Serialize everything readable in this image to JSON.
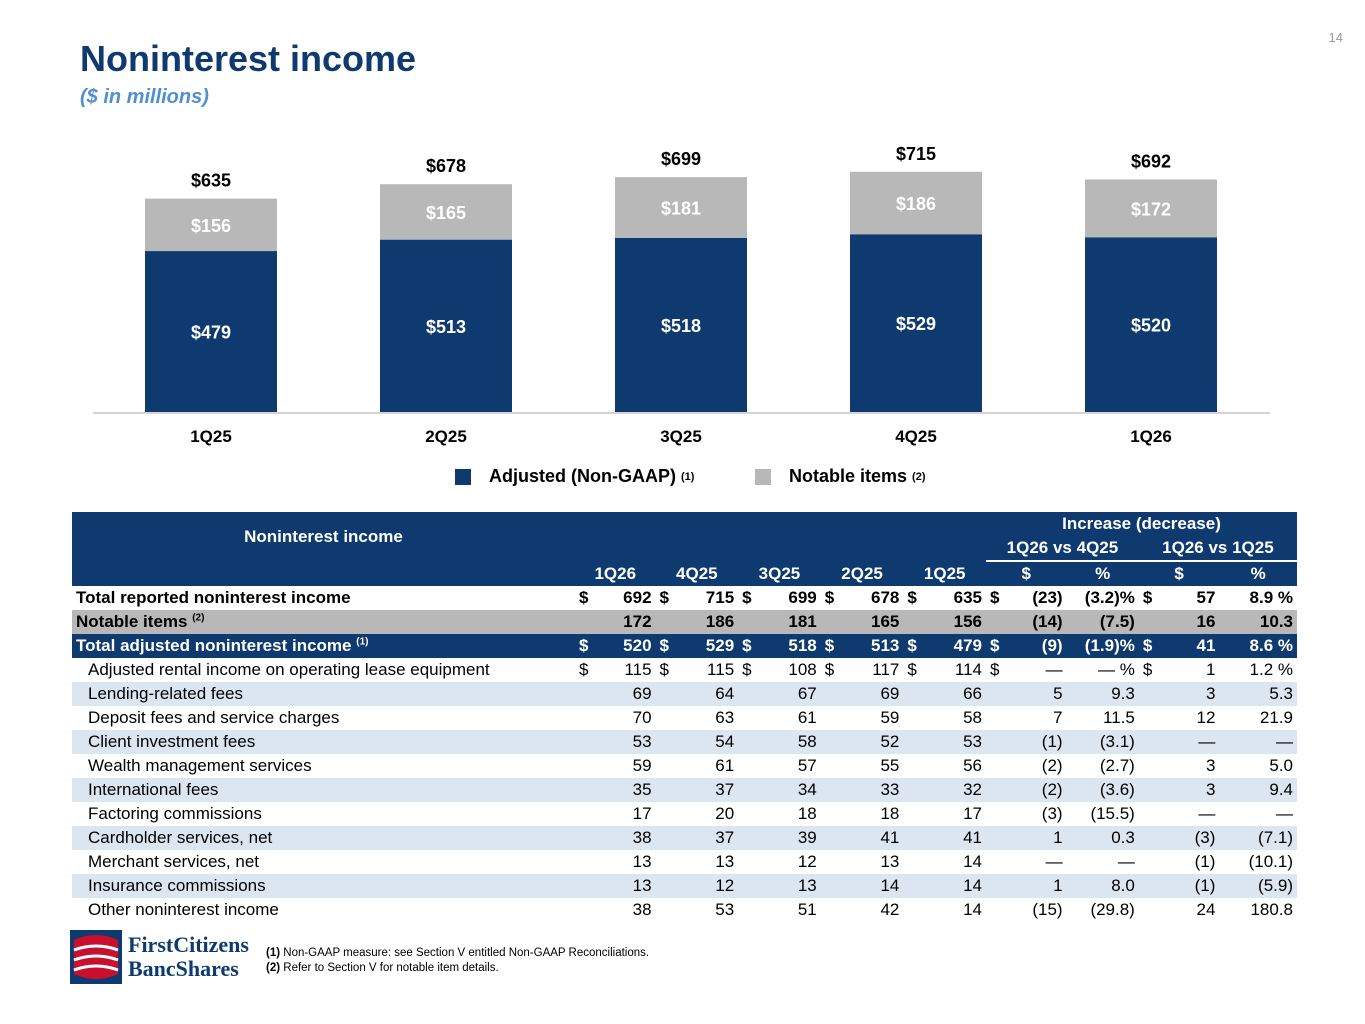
{
  "page_number": "14",
  "title": "Noninterest income",
  "subtitle": "($ in millions)",
  "chart_data": {
    "type": "bar",
    "stacked": true,
    "categories": [
      "1Q25",
      "2Q25",
      "3Q25",
      "4Q25",
      "1Q26"
    ],
    "series": [
      {
        "name": "Adjusted (Non-GAAP)",
        "values": [
          479,
          513,
          518,
          529,
          520
        ],
        "labels": [
          "$479",
          "$513",
          "$518",
          "$529",
          "$520"
        ],
        "color": "#0f3a70"
      },
      {
        "name": "Notable items",
        "values": [
          156,
          165,
          181,
          186,
          172
        ],
        "labels": [
          "$156",
          "$165",
          "$181",
          "$186",
          "$172"
        ],
        "color": "#b8b8b8"
      }
    ],
    "totals": [
      "$635",
      "$678",
      "$699",
      "$715",
      "$692"
    ],
    "ylim": [
      0,
      800
    ],
    "legend": {
      "adjusted": "Adjusted (Non-GAAP)",
      "adjusted_note": "(1)",
      "notable": "Notable items",
      "notable_note": "(2)",
      "position": "bottom-center"
    }
  },
  "table": {
    "header_title": "Noninterest income",
    "increase_header": "Increase (decrease)",
    "vs1": "1Q26 vs 4Q25",
    "vs2": "1Q26 vs 1Q25",
    "periods": [
      "1Q26",
      "4Q25",
      "3Q25",
      "2Q25",
      "1Q25"
    ],
    "chg_cols": [
      "$",
      "%",
      "$",
      "%"
    ],
    "rows": [
      {
        "label": "Total reported noninterest income",
        "note": "",
        "style": "total",
        "dollar": true,
        "values": [
          "692",
          "715",
          "699",
          "678",
          "635"
        ],
        "c1": "(23)",
        "p1": "(3.2)%",
        "c2": "57",
        "p2": "8.9 %"
      },
      {
        "label": "Notable items",
        "note": "(2)",
        "style": "notable",
        "dollar": false,
        "values": [
          "172",
          "186",
          "181",
          "165",
          "156"
        ],
        "c1": "(14)",
        "p1": "(7.5)",
        "c2": "16",
        "p2": "10.3"
      },
      {
        "label": "Total adjusted noninterest income",
        "note": "(1)",
        "style": "adj",
        "dollar": true,
        "values": [
          "520",
          "529",
          "518",
          "513",
          "479"
        ],
        "c1": "(9)",
        "p1": "(1.9)%",
        "c2": "41",
        "p2": "8.6 %"
      },
      {
        "label": "Adjusted rental income on operating lease equipment",
        "note": "",
        "style": "item",
        "dollar": true,
        "values": [
          "115",
          "115",
          "108",
          "117",
          "114"
        ],
        "c1": "—",
        "p1": "— %",
        "c2": "1",
        "p2": "1.2 %"
      },
      {
        "label": "Lending-related fees",
        "note": "",
        "style": "shade",
        "dollar": false,
        "values": [
          "69",
          "64",
          "67",
          "69",
          "66"
        ],
        "c1": "5",
        "p1": "9.3",
        "c2": "3",
        "p2": "5.3"
      },
      {
        "label": "Deposit fees and service charges",
        "note": "",
        "style": "item",
        "dollar": false,
        "values": [
          "70",
          "63",
          "61",
          "59",
          "58"
        ],
        "c1": "7",
        "p1": "11.5",
        "c2": "12",
        "p2": "21.9"
      },
      {
        "label": "Client investment fees",
        "note": "",
        "style": "shade",
        "dollar": false,
        "values": [
          "53",
          "54",
          "58",
          "52",
          "53"
        ],
        "c1": "(1)",
        "p1": "(3.1)",
        "c2": "—",
        "p2": "—"
      },
      {
        "label": "Wealth management services",
        "note": "",
        "style": "item",
        "dollar": false,
        "values": [
          "59",
          "61",
          "57",
          "55",
          "56"
        ],
        "c1": "(2)",
        "p1": "(2.7)",
        "c2": "3",
        "p2": "5.0"
      },
      {
        "label": "International fees",
        "note": "",
        "style": "shade",
        "dollar": false,
        "values": [
          "35",
          "37",
          "34",
          "33",
          "32"
        ],
        "c1": "(2)",
        "p1": "(3.6)",
        "c2": "3",
        "p2": "9.4"
      },
      {
        "label": "Factoring commissions",
        "note": "",
        "style": "item",
        "dollar": false,
        "values": [
          "17",
          "20",
          "18",
          "18",
          "17"
        ],
        "c1": "(3)",
        "p1": "(15.5)",
        "c2": "—",
        "p2": "—"
      },
      {
        "label": "Cardholder services, net",
        "note": "",
        "style": "shade",
        "dollar": false,
        "values": [
          "38",
          "37",
          "39",
          "41",
          "41"
        ],
        "c1": "1",
        "p1": "0.3",
        "c2": "(3)",
        "p2": "(7.1)"
      },
      {
        "label": "Merchant services, net",
        "note": "",
        "style": "item",
        "dollar": false,
        "values": [
          "13",
          "13",
          "12",
          "13",
          "14"
        ],
        "c1": "—",
        "p1": "—",
        "c2": "(1)",
        "p2": "(10.1)"
      },
      {
        "label": "Insurance commissions",
        "note": "",
        "style": "shade",
        "dollar": false,
        "values": [
          "13",
          "12",
          "13",
          "14",
          "14"
        ],
        "c1": "1",
        "p1": "8.0",
        "c2": "(1)",
        "p2": "(5.9)"
      },
      {
        "label": "Other noninterest income",
        "note": "",
        "style": "item",
        "dollar": false,
        "values": [
          "38",
          "53",
          "51",
          "42",
          "14"
        ],
        "c1": "(15)",
        "p1": "(29.8)",
        "c2": "24",
        "p2": "180.8"
      }
    ]
  },
  "footnotes": {
    "n1_mark": "(1)",
    "n1": " Non-GAAP measure: see Section V entitled Non-GAAP Reconciliations.",
    "n2_mark": "(2)",
    "n2": " Refer to Section V for notable item details."
  },
  "logo": {
    "line1": "FirstCitizens",
    "line2": "BancShares"
  }
}
